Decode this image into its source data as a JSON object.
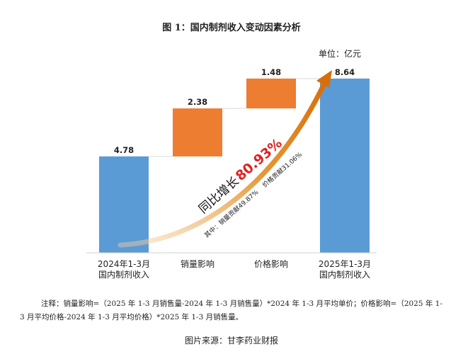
{
  "title": "图 1：国内制剂收入变动因素分析",
  "unit_label": "单位：亿元",
  "note": "注释：销量影响=（2025 年 1-3 月销售量-2024 年 1-3 月销售量）*2024 年 1-3 月平均单价；价格影响=（2025 年 1-3 月平均价格-2024 年 1-3 月平均价格）*2025 年 1-3 月销售量。",
  "source": "图片来源：甘李药业财报",
  "annotation": {
    "growth_prefix": "同比增长",
    "growth_value": "80.93%",
    "breakdown_volume": "其中：销量贡献49.87%",
    "breakdown_price": "价格贡献31.06%"
  },
  "colors": {
    "total_bar": "#5B9BD5",
    "change_bar": "#ED7D31",
    "highlight": "#E02020",
    "arrow": "#E07B10"
  },
  "chart_data": {
    "type": "bar",
    "subtype": "waterfall",
    "categories": [
      [
        "2024年1-3月",
        "国内制剂收入"
      ],
      [
        "销量影响"
      ],
      [
        "价格影响"
      ],
      [
        "2025年1-3月",
        "国内制剂收入"
      ]
    ],
    "values": [
      4.78,
      2.38,
      1.48,
      8.64
    ],
    "value_labels": [
      "4.78",
      "2.38",
      "1.48",
      "8.64"
    ],
    "kinds": [
      "total",
      "increase",
      "increase",
      "total"
    ],
    "ylim": [
      0,
      9.2
    ],
    "grid": false,
    "legend": "none"
  }
}
